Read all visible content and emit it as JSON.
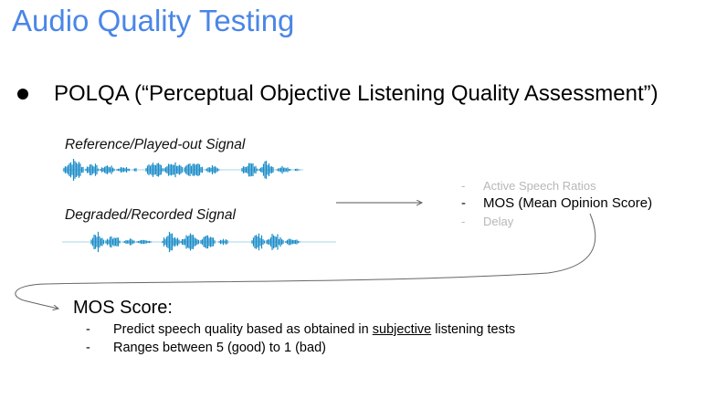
{
  "title": "Audio Quality Testing",
  "bullet": {
    "text": "POLQA (“Perceptual Objective Listening Quality Assessment”)"
  },
  "signals": {
    "reference_label": "Reference/Played-out Signal",
    "degraded_label": "Degraded/Recorded Signal",
    "waveform_color": "#1a8cc7"
  },
  "outputs": [
    {
      "dash": "-",
      "label": "Active Speech Ratios",
      "emphasis": false
    },
    {
      "dash": "-",
      "label": "MOS (Mean Opinion Score)",
      "emphasis": true
    },
    {
      "dash": "-",
      "label": "Delay",
      "emphasis": false
    }
  ],
  "mos": {
    "heading": "MOS Score:",
    "items": [
      {
        "dash": "-",
        "text_before": "Predict speech quality based as obtained in ",
        "underlined": "subjective",
        "text_after": " listening tests"
      },
      {
        "dash": "-",
        "text": "Ranges between 5 (good) to 1 (bad)"
      }
    ]
  },
  "colors": {
    "title": "#4a86e8",
    "muted": "#b7b7b7",
    "arrow": "#666666"
  }
}
